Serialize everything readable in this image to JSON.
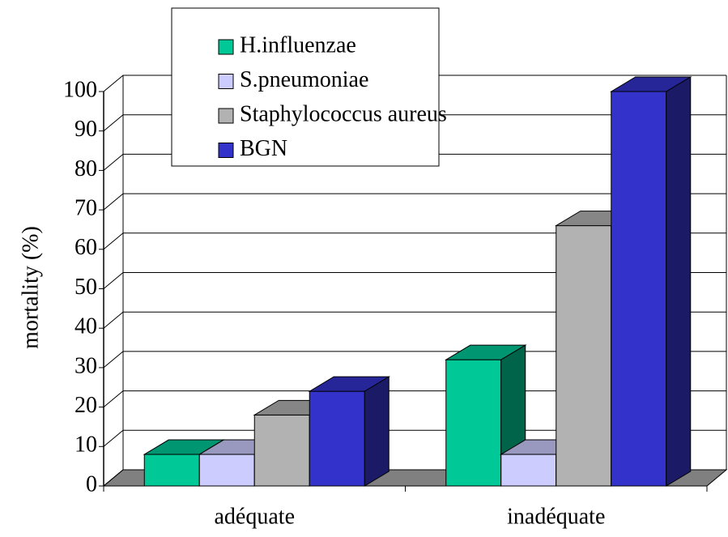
{
  "chart_data": {
    "type": "bar3d",
    "y_label": "mortality (%)",
    "categories": [
      "adéquate",
      "inadéquate"
    ],
    "series": [
      {
        "name": "H.influenzae",
        "color": "#00c896",
        "values": [
          8,
          32
        ]
      },
      {
        "name": "S.pneumoniae",
        "color": "#ccccff",
        "values": [
          8,
          8
        ]
      },
      {
        "name": "Staphylococcus aureus",
        "color": "#b2b2b2",
        "values": [
          18,
          66
        ]
      },
      {
        "name": "BGN",
        "color": "#3333cc",
        "values": [
          24,
          100
        ]
      }
    ],
    "ylim": [
      0,
      100
    ],
    "yticks": [
      0,
      10,
      20,
      30,
      40,
      50,
      60,
      70,
      80,
      90,
      100
    ],
    "grid": true
  }
}
